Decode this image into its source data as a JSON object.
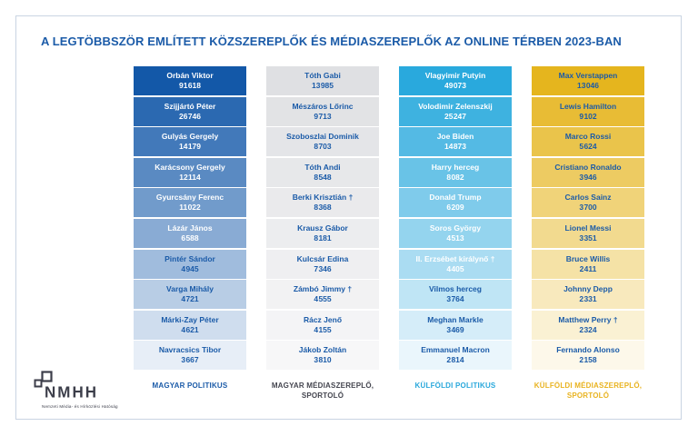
{
  "title": "A LEGTÖBBSZÖR EMLÍTETT KÖZSZEREPLŐK ÉS MÉDIASZEREPLŐK AZ ONLINE TÉRBEN 2023-BAN",
  "colors": {
    "title": "#1b5ba8",
    "cell_text_blue": "#1b5ba8",
    "cell_text_white": "#ffffff",
    "card_border": "#c9d4e2",
    "logo": "#3c3e4a"
  },
  "logo": {
    "name": "NMHH",
    "subtitle": "Nemzeti Média- és Hírközlési Hatóság"
  },
  "columns": [
    {
      "label": "MAGYAR POLITIKUS",
      "label_color": "#1b5ba8",
      "gradient_start": "#1358a8",
      "gradient_end": "#e7eef7",
      "white_text_count": 6,
      "people": [
        {
          "name": "Orbán Viktor",
          "value": "91 618"
        },
        {
          "name": "Szijjártó Péter",
          "value": "26 746"
        },
        {
          "name": "Gulyás Gergely",
          "value": "14 179"
        },
        {
          "name": "Karácsony Gergely",
          "value": "12 114"
        },
        {
          "name": "Gyurcsány Ferenc",
          "value": "11 022"
        },
        {
          "name": "Lázár János",
          "value": "6 588"
        },
        {
          "name": "Pintér Sándor",
          "value": "4 945"
        },
        {
          "name": "Varga Mihály",
          "value": "4 721"
        },
        {
          "name": "Márki-Zay Péter",
          "value": "4 621"
        },
        {
          "name": "Navracsics Tibor",
          "value": "3 667"
        }
      ]
    },
    {
      "label": "MAGYAR MÉDIASZEREPLŐ,\nSPORTOLÓ",
      "label_color": "#44454f",
      "gradient_start": "#dfe0e3",
      "gradient_end": "#f7f7f8",
      "white_text_count": 0,
      "people": [
        {
          "name": "Tóth Gabi",
          "value": "13 985"
        },
        {
          "name": "Mészáros Lőrinc",
          "value": "9 713"
        },
        {
          "name": "Szoboszlai Dominik",
          "value": "8 703"
        },
        {
          "name": "Tóth Andi",
          "value": "8 548"
        },
        {
          "name": "Berki Krisztián †",
          "value": "8 368"
        },
        {
          "name": "Krausz Gábor",
          "value": "8 181"
        },
        {
          "name": "Kulcsár Edina",
          "value": "7 346"
        },
        {
          "name": "Zámbó Jimmy †",
          "value": "4 555"
        },
        {
          "name": "Rácz Jenő",
          "value": "4 155"
        },
        {
          "name": "Jákob Zoltán",
          "value": "3 810"
        }
      ]
    },
    {
      "label": "KÜLFÖLDI POLITIKUS",
      "label_color": "#29a8dc",
      "gradient_start": "#29a9dd",
      "gradient_end": "#eaf6fc",
      "white_text_count": 7,
      "people": [
        {
          "name": "Vlagyimir Putyin",
          "value": "49 073"
        },
        {
          "name": "Volodimir Zelenszkij",
          "value": "25 247"
        },
        {
          "name": "Joe Biden",
          "value": "14 873"
        },
        {
          "name": "Harry herceg",
          "value": "8 082"
        },
        {
          "name": "Donald Trump",
          "value": "6 209"
        },
        {
          "name": "Soros György",
          "value": "4 513"
        },
        {
          "name": "II. Erzsébet királynő †",
          "value": "4 405"
        },
        {
          "name": "Vilmos herceg",
          "value": "3 764"
        },
        {
          "name": "Meghan Markle",
          "value": "3 469"
        },
        {
          "name": "Emmanuel Macron",
          "value": "2 814"
        }
      ]
    },
    {
      "label": "KÜLFÖLDI MÉDIASZEREPLŐ,\nSPORTOLÓ",
      "label_color": "#e9b320",
      "gradient_start": "#e5b51e",
      "gradient_end": "#fdf8ea",
      "white_text_count": 0,
      "people": [
        {
          "name": "Max Verstappen",
          "value": "13 046"
        },
        {
          "name": "Lewis Hamilton",
          "value": "9 102"
        },
        {
          "name": "Marco Rossi",
          "value": "5 624"
        },
        {
          "name": "Cristiano Ronaldo",
          "value": "3 946"
        },
        {
          "name": "Carlos Sainz",
          "value": "3 700"
        },
        {
          "name": "Lionel Messi",
          "value": "3 351"
        },
        {
          "name": "Bruce Willis",
          "value": "2 411"
        },
        {
          "name": "Johnny Depp",
          "value": "2 331"
        },
        {
          "name": "Matthew Perry †",
          "value": "2 324"
        },
        {
          "name": "Fernando Alonso",
          "value": "2 158"
        }
      ]
    }
  ],
  "chart_data": {
    "type": "table",
    "title": "A LEGTÖBBSZÖR EMLÍTETT KÖZSZEREPLŐK ÉS MÉDIASZEREPLŐK AZ ONLINE TÉRBEN 2023-BAN",
    "groups": [
      {
        "label": "MAGYAR POLITIKUS",
        "categories": [
          "Orbán Viktor",
          "Szijjártó Péter",
          "Gulyás Gergely",
          "Karácsony Gergely",
          "Gyurcsány Ferenc",
          "Lázár János",
          "Pintér Sándor",
          "Varga Mihály",
          "Márki-Zay Péter",
          "Navracsics Tibor"
        ],
        "values": [
          91618,
          26746,
          14179,
          12114,
          11022,
          6588,
          4945,
          4721,
          4621,
          3667
        ]
      },
      {
        "label": "MAGYAR MÉDIASZEREPLŐ, SPORTOLÓ",
        "categories": [
          "Tóth Gabi",
          "Mészáros Lőrinc",
          "Szoboszlai Dominik",
          "Tóth Andi",
          "Berki Krisztián †",
          "Krausz Gábor",
          "Kulcsár Edina",
          "Zámbó Jimmy †",
          "Rácz Jenő",
          "Jákob Zoltán"
        ],
        "values": [
          13985,
          9713,
          8703,
          8548,
          8368,
          8181,
          7346,
          4555,
          4155,
          3810
        ]
      },
      {
        "label": "KÜLFÖLDI POLITIKUS",
        "categories": [
          "Vlagyimir Putyin",
          "Volodimir Zelenszkij",
          "Joe Biden",
          "Harry herceg",
          "Donald Trump",
          "Soros György",
          "II. Erzsébet királynő †",
          "Vilmos herceg",
          "Meghan Markle",
          "Emmanuel Macron"
        ],
        "values": [
          49073,
          25247,
          14873,
          8082,
          6209,
          4513,
          4405,
          3764,
          3469,
          2814
        ]
      },
      {
        "label": "KÜLFÖLDI MÉDIASZEREPLŐ, SPORTOLÓ",
        "categories": [
          "Max Verstappen",
          "Lewis Hamilton",
          "Marco Rossi",
          "Cristiano Ronaldo",
          "Carlos Sainz",
          "Lionel Messi",
          "Bruce Willis",
          "Johnny Depp",
          "Matthew Perry †",
          "Fernando Alonso"
        ],
        "values": [
          13046,
          9102,
          5624,
          3946,
          3700,
          3351,
          2411,
          2331,
          2324,
          2158
        ]
      }
    ]
  }
}
